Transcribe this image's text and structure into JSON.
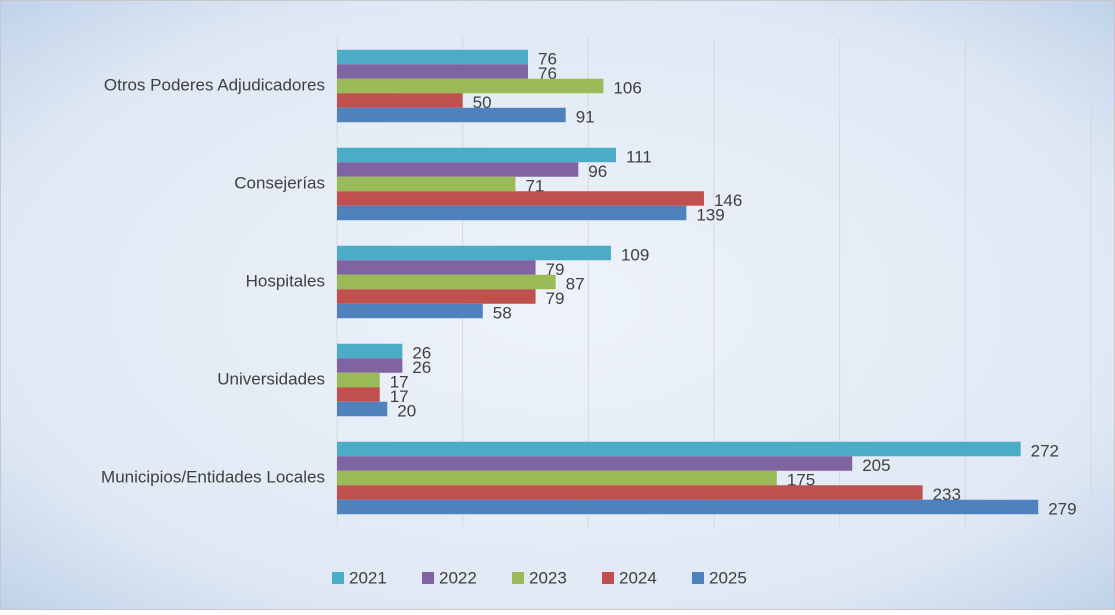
{
  "chart_data": {
    "type": "hbar",
    "categories": [
      "Otros Poderes Adjudicadores",
      "Consejerías",
      "Hospitales",
      "Universidades",
      "Municipios/Entidades Locales"
    ],
    "series": [
      {
        "name": "2021",
        "color": "#4bacc6",
        "values": [
          76,
          111,
          109,
          26,
          272
        ]
      },
      {
        "name": "2022",
        "color": "#8064a2",
        "values": [
          76,
          96,
          79,
          26,
          205
        ]
      },
      {
        "name": "2023",
        "color": "#9bbb59",
        "values": [
          106,
          71,
          87,
          17,
          175
        ]
      },
      {
        "name": "2024",
        "color": "#c0504d",
        "values": [
          50,
          146,
          79,
          17,
          233
        ]
      },
      {
        "name": "2025",
        "color": "#4f81bd",
        "values": [
          91,
          139,
          58,
          20,
          279
        ]
      }
    ],
    "xlim": [
      0,
      300
    ],
    "xgrid": [
      0,
      50,
      100,
      150,
      200,
      250,
      300
    ],
    "grid": true,
    "legend": "bottom"
  }
}
